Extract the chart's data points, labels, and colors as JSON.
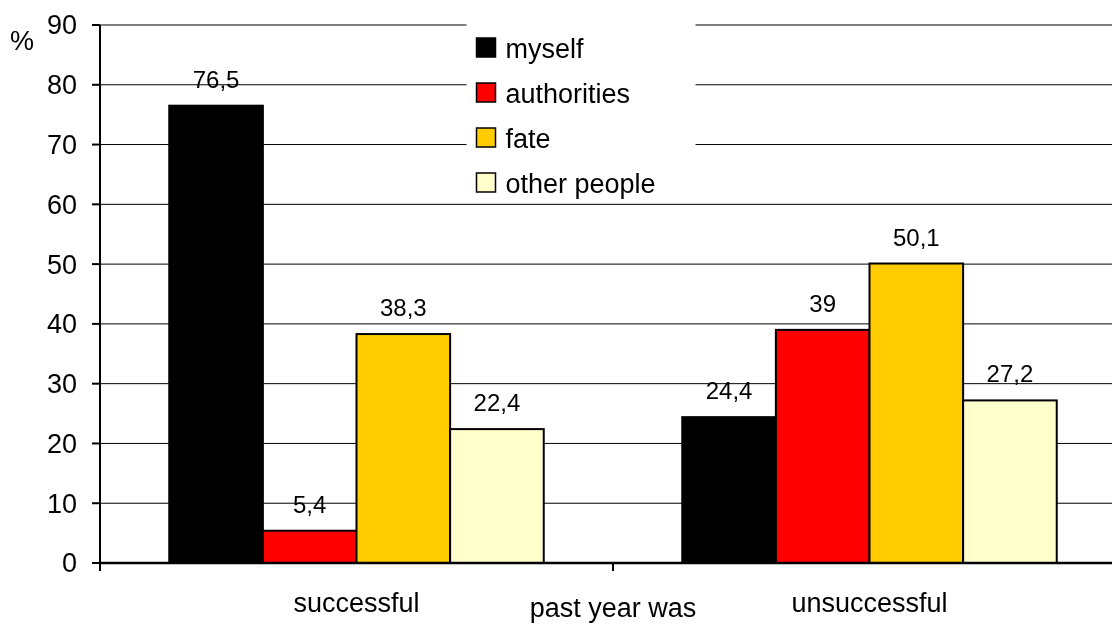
{
  "chart_data": {
    "type": "bar",
    "ylabel": "%",
    "xlabel": "past year was",
    "categories": [
      "successful",
      "unsuccessful"
    ],
    "series": [
      {
        "name": "myself",
        "color": "#000000",
        "values": [
          76.5,
          24.4
        ],
        "value_labels": [
          "76,5",
          "24,4"
        ]
      },
      {
        "name": "authorities",
        "color": "#ff0000",
        "values": [
          5.4,
          39
        ],
        "value_labels": [
          "5,4",
          "39"
        ]
      },
      {
        "name": "fate",
        "color": "#ffcc00",
        "values": [
          38.3,
          50.1
        ],
        "value_labels": [
          "38,3",
          "50,1"
        ]
      },
      {
        "name": "other people",
        "color": "#ffffcc",
        "values": [
          22.4,
          27.2
        ],
        "value_labels": [
          "22,4",
          "27,2"
        ]
      }
    ],
    "ylim": [
      0,
      90
    ],
    "yticks": [
      0,
      10,
      20,
      30,
      40,
      50,
      60,
      70,
      80,
      90
    ],
    "grid": "y",
    "legend": "top"
  }
}
